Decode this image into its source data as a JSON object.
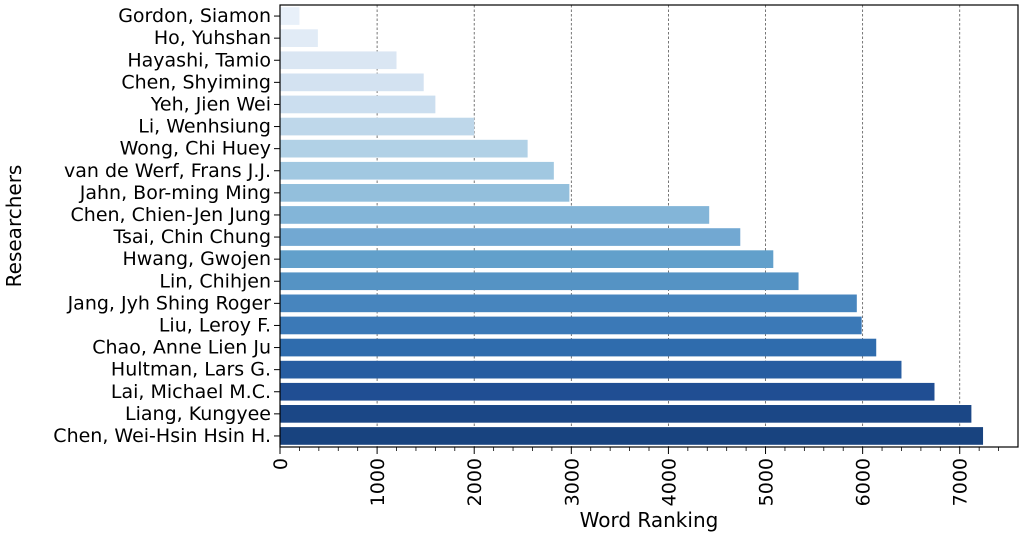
{
  "chart_data": {
    "type": "bar",
    "orientation": "horizontal",
    "xlabel": "Word Ranking",
    "ylabel": "Researchers",
    "xlim": [
      0,
      7600
    ],
    "xticks": [
      "0",
      "1000",
      "2000",
      "3000",
      "4000",
      "5000",
      "6000",
      "7000"
    ],
    "xtick_values": [
      0,
      1000,
      2000,
      3000,
      4000,
      5000,
      6000,
      7000
    ],
    "grid": "vertical dashed",
    "colormap": "Blues",
    "categories": [
      "Gordon, Siamon",
      "Ho, Yuhshan",
      "Hayashi, Tamio",
      "Chen, Shyiming",
      "Yeh, Jien Wei",
      "Li, Wenhsiung",
      "Wong, Chi Huey",
      "van de Werf, Frans J.J.",
      "Jahn, Bor-ming Ming",
      "Chen, Chien-Jen Jung",
      "Tsai, Chin Chung",
      "Hwang, Gwojen",
      "Lin, Chihjen",
      "Jang, Jyh Shing Roger",
      "Liu, Leroy F.",
      "Chao, Anne Lien Ju",
      "Hultman, Lars G.",
      "Lai, Michael M.C.",
      "Liang, Kungyee",
      "Chen, Wei-Hsin Hsin H."
    ],
    "values": [
      200,
      390,
      1200,
      1480,
      1600,
      2000,
      2550,
      2820,
      2980,
      4420,
      4740,
      5080,
      5340,
      5940,
      5990,
      6140,
      6400,
      6740,
      7120,
      7240
    ],
    "colors": [
      "#e8f0f9",
      "#e1ebf6",
      "#dae6f3",
      "#d3e2f1",
      "#cbdeef",
      "#bed7ea",
      "#b1d1e6",
      "#a1c8e1",
      "#93bfdc",
      "#83b5d8",
      "#72a8d2",
      "#62a0cb",
      "#5593c4",
      "#4785be",
      "#3b79b7",
      "#2f6cad",
      "#275da1",
      "#204e93",
      "#1b4786",
      "#18437f"
    ]
  }
}
